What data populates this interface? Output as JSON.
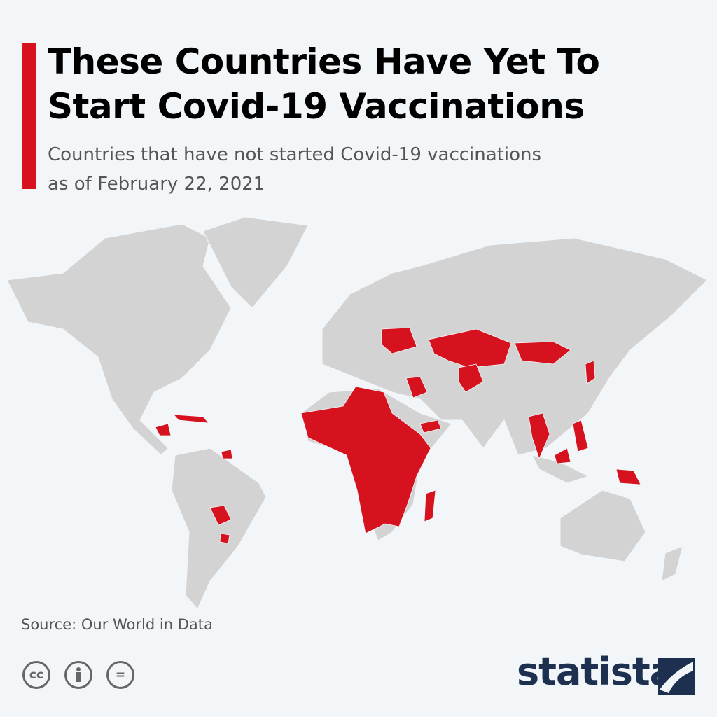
{
  "header": {
    "title_lines": [
      "These Countries Have Yet To",
      "Start Covid-19 Vaccinations"
    ],
    "subtitle_lines": [
      "Countries that have not started Covid-19 vaccinations",
      "as of February 22, 2021"
    ]
  },
  "footer": {
    "source": "Source: Our World in Data",
    "icons": [
      "cc",
      "="
    ],
    "brand": "statista"
  }
}
